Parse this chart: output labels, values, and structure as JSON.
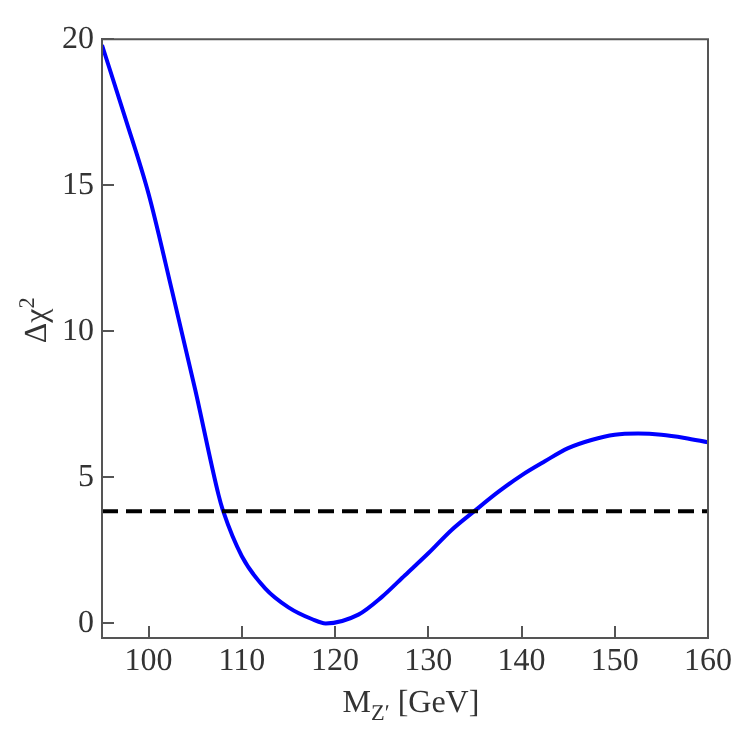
{
  "chart_data": {
    "type": "line",
    "xlabel": "M$_{Z′}$ [GeV]",
    "ylabel": "Δχ$^{2}$",
    "x": [
      95,
      97.5,
      100,
      102.5,
      105,
      107.5,
      108,
      110,
      112.5,
      115,
      117.5,
      119,
      122.5,
      125,
      127.5,
      130,
      132.5,
      135,
      137.5,
      140,
      142.5,
      145,
      147.5,
      150,
      152.5,
      155,
      157.5,
      160
    ],
    "series": [
      {
        "color": "#0000ff",
        "values": [
          19.8,
          17.3,
          14.7,
          11.4,
          8.0,
          4.4,
          3.84,
          2.3,
          1.2,
          0.55,
          0.15,
          0,
          0.3,
          0.9,
          1.65,
          2.4,
          3.2,
          3.86,
          4.5,
          5.07,
          5.55,
          6.0,
          6.28,
          6.46,
          6.5,
          6.46,
          6.35,
          6.2
        ]
      }
    ],
    "xlim": [
      95,
      160
    ],
    "xticks": [
      100,
      110,
      120,
      130,
      140,
      150,
      160
    ],
    "ylim": [
      -0.5,
      20
    ],
    "yticks": [
      0,
      5,
      10,
      15,
      20
    ],
    "ref_lines": [
      {
        "axis": "y",
        "value": 3.84,
        "color": "#000000",
        "line_style": "dashed"
      }
    ],
    "grid": false,
    "legend": false,
    "marker": "none",
    "line_style": "solid"
  }
}
